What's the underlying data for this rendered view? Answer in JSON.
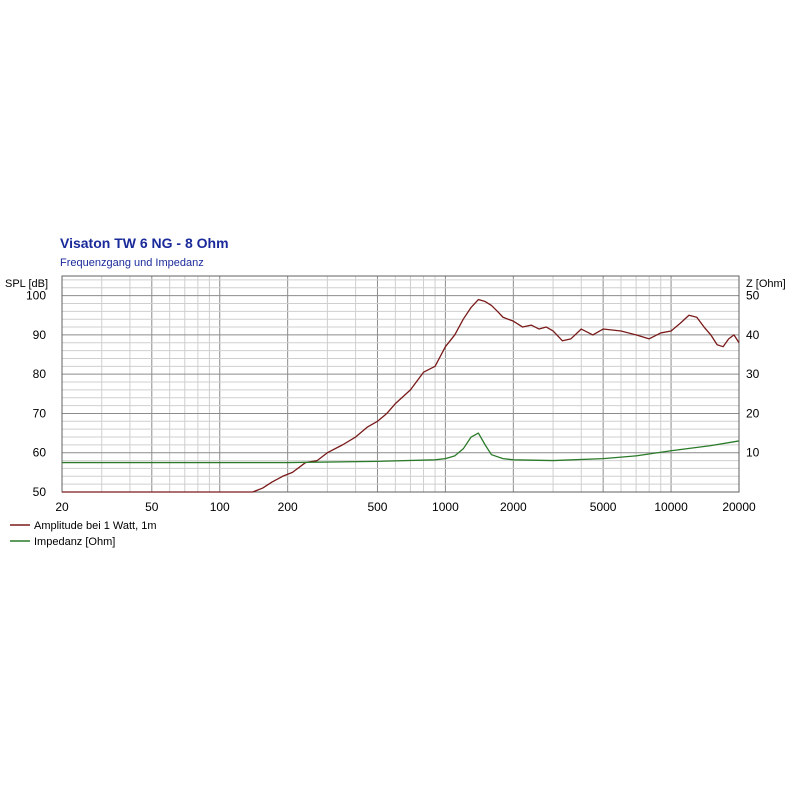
{
  "chart_data": {
    "type": "line",
    "title": "Visaton TW 6 NG - 8 Ohm",
    "subtitle": "Frequenzgang und Impedanz",
    "ylabel_left": "SPL [dB]",
    "ylabel_right": "Z [Ohm]",
    "x_scale": "log",
    "xlim": [
      20,
      20000
    ],
    "ylim_left": [
      50,
      105
    ],
    "ylim_right": [
      0,
      55
    ],
    "x_ticks": [
      "20",
      "50",
      "100",
      "200",
      "500",
      "1000",
      "2000",
      "5000",
      "10000",
      "20000"
    ],
    "y_ticks_left": [
      "50",
      "60",
      "70",
      "80",
      "90",
      "100"
    ],
    "y_ticks_right": [
      "10",
      "20",
      "30",
      "40",
      "50"
    ],
    "grid": true,
    "legend_position": "bottom-left",
    "series": [
      {
        "name": "Amplitude bei 1 Watt, 1m",
        "axis": "left",
        "color": "#7a1a1a",
        "points": [
          [
            20,
            50
          ],
          [
            140,
            50
          ],
          [
            155,
            51
          ],
          [
            170,
            52.5
          ],
          [
            190,
            54
          ],
          [
            210,
            55
          ],
          [
            240,
            57.5
          ],
          [
            270,
            58
          ],
          [
            300,
            60
          ],
          [
            350,
            62
          ],
          [
            400,
            64
          ],
          [
            450,
            66.5
          ],
          [
            500,
            68
          ],
          [
            550,
            70
          ],
          [
            600,
            72.5
          ],
          [
            700,
            76
          ],
          [
            800,
            80.5
          ],
          [
            900,
            82
          ],
          [
            1000,
            87
          ],
          [
            1100,
            90
          ],
          [
            1200,
            94
          ],
          [
            1300,
            97
          ],
          [
            1400,
            99
          ],
          [
            1500,
            98.5
          ],
          [
            1600,
            97.5
          ],
          [
            1700,
            96
          ],
          [
            1800,
            94.5
          ],
          [
            2000,
            93.5
          ],
          [
            2200,
            92
          ],
          [
            2400,
            92.5
          ],
          [
            2600,
            91.5
          ],
          [
            2800,
            92
          ],
          [
            3000,
            91
          ],
          [
            3300,
            88.5
          ],
          [
            3600,
            89
          ],
          [
            4000,
            91.5
          ],
          [
            4500,
            90
          ],
          [
            5000,
            91.5
          ],
          [
            6000,
            91
          ],
          [
            7000,
            90
          ],
          [
            8000,
            89
          ],
          [
            9000,
            90.5
          ],
          [
            10000,
            91
          ],
          [
            11000,
            93
          ],
          [
            12000,
            95
          ],
          [
            13000,
            94.5
          ],
          [
            14000,
            92
          ],
          [
            15000,
            90
          ],
          [
            16000,
            87.5
          ],
          [
            17000,
            87
          ],
          [
            18000,
            89
          ],
          [
            19000,
            90
          ],
          [
            20000,
            88
          ]
        ]
      },
      {
        "name": "Impedanz [Ohm]",
        "axis": "right",
        "color": "#2a7a2a",
        "points": [
          [
            20,
            7.5
          ],
          [
            200,
            7.5
          ],
          [
            500,
            7.8
          ],
          [
            900,
            8.2
          ],
          [
            1000,
            8.5
          ],
          [
            1100,
            9.2
          ],
          [
            1200,
            11
          ],
          [
            1300,
            14
          ],
          [
            1400,
            15
          ],
          [
            1500,
            12
          ],
          [
            1600,
            9.5
          ],
          [
            1800,
            8.5
          ],
          [
            2000,
            8.2
          ],
          [
            3000,
            8
          ],
          [
            5000,
            8.5
          ],
          [
            7000,
            9.2
          ],
          [
            10000,
            10.5
          ],
          [
            15000,
            11.8
          ],
          [
            20000,
            13
          ]
        ]
      }
    ]
  }
}
